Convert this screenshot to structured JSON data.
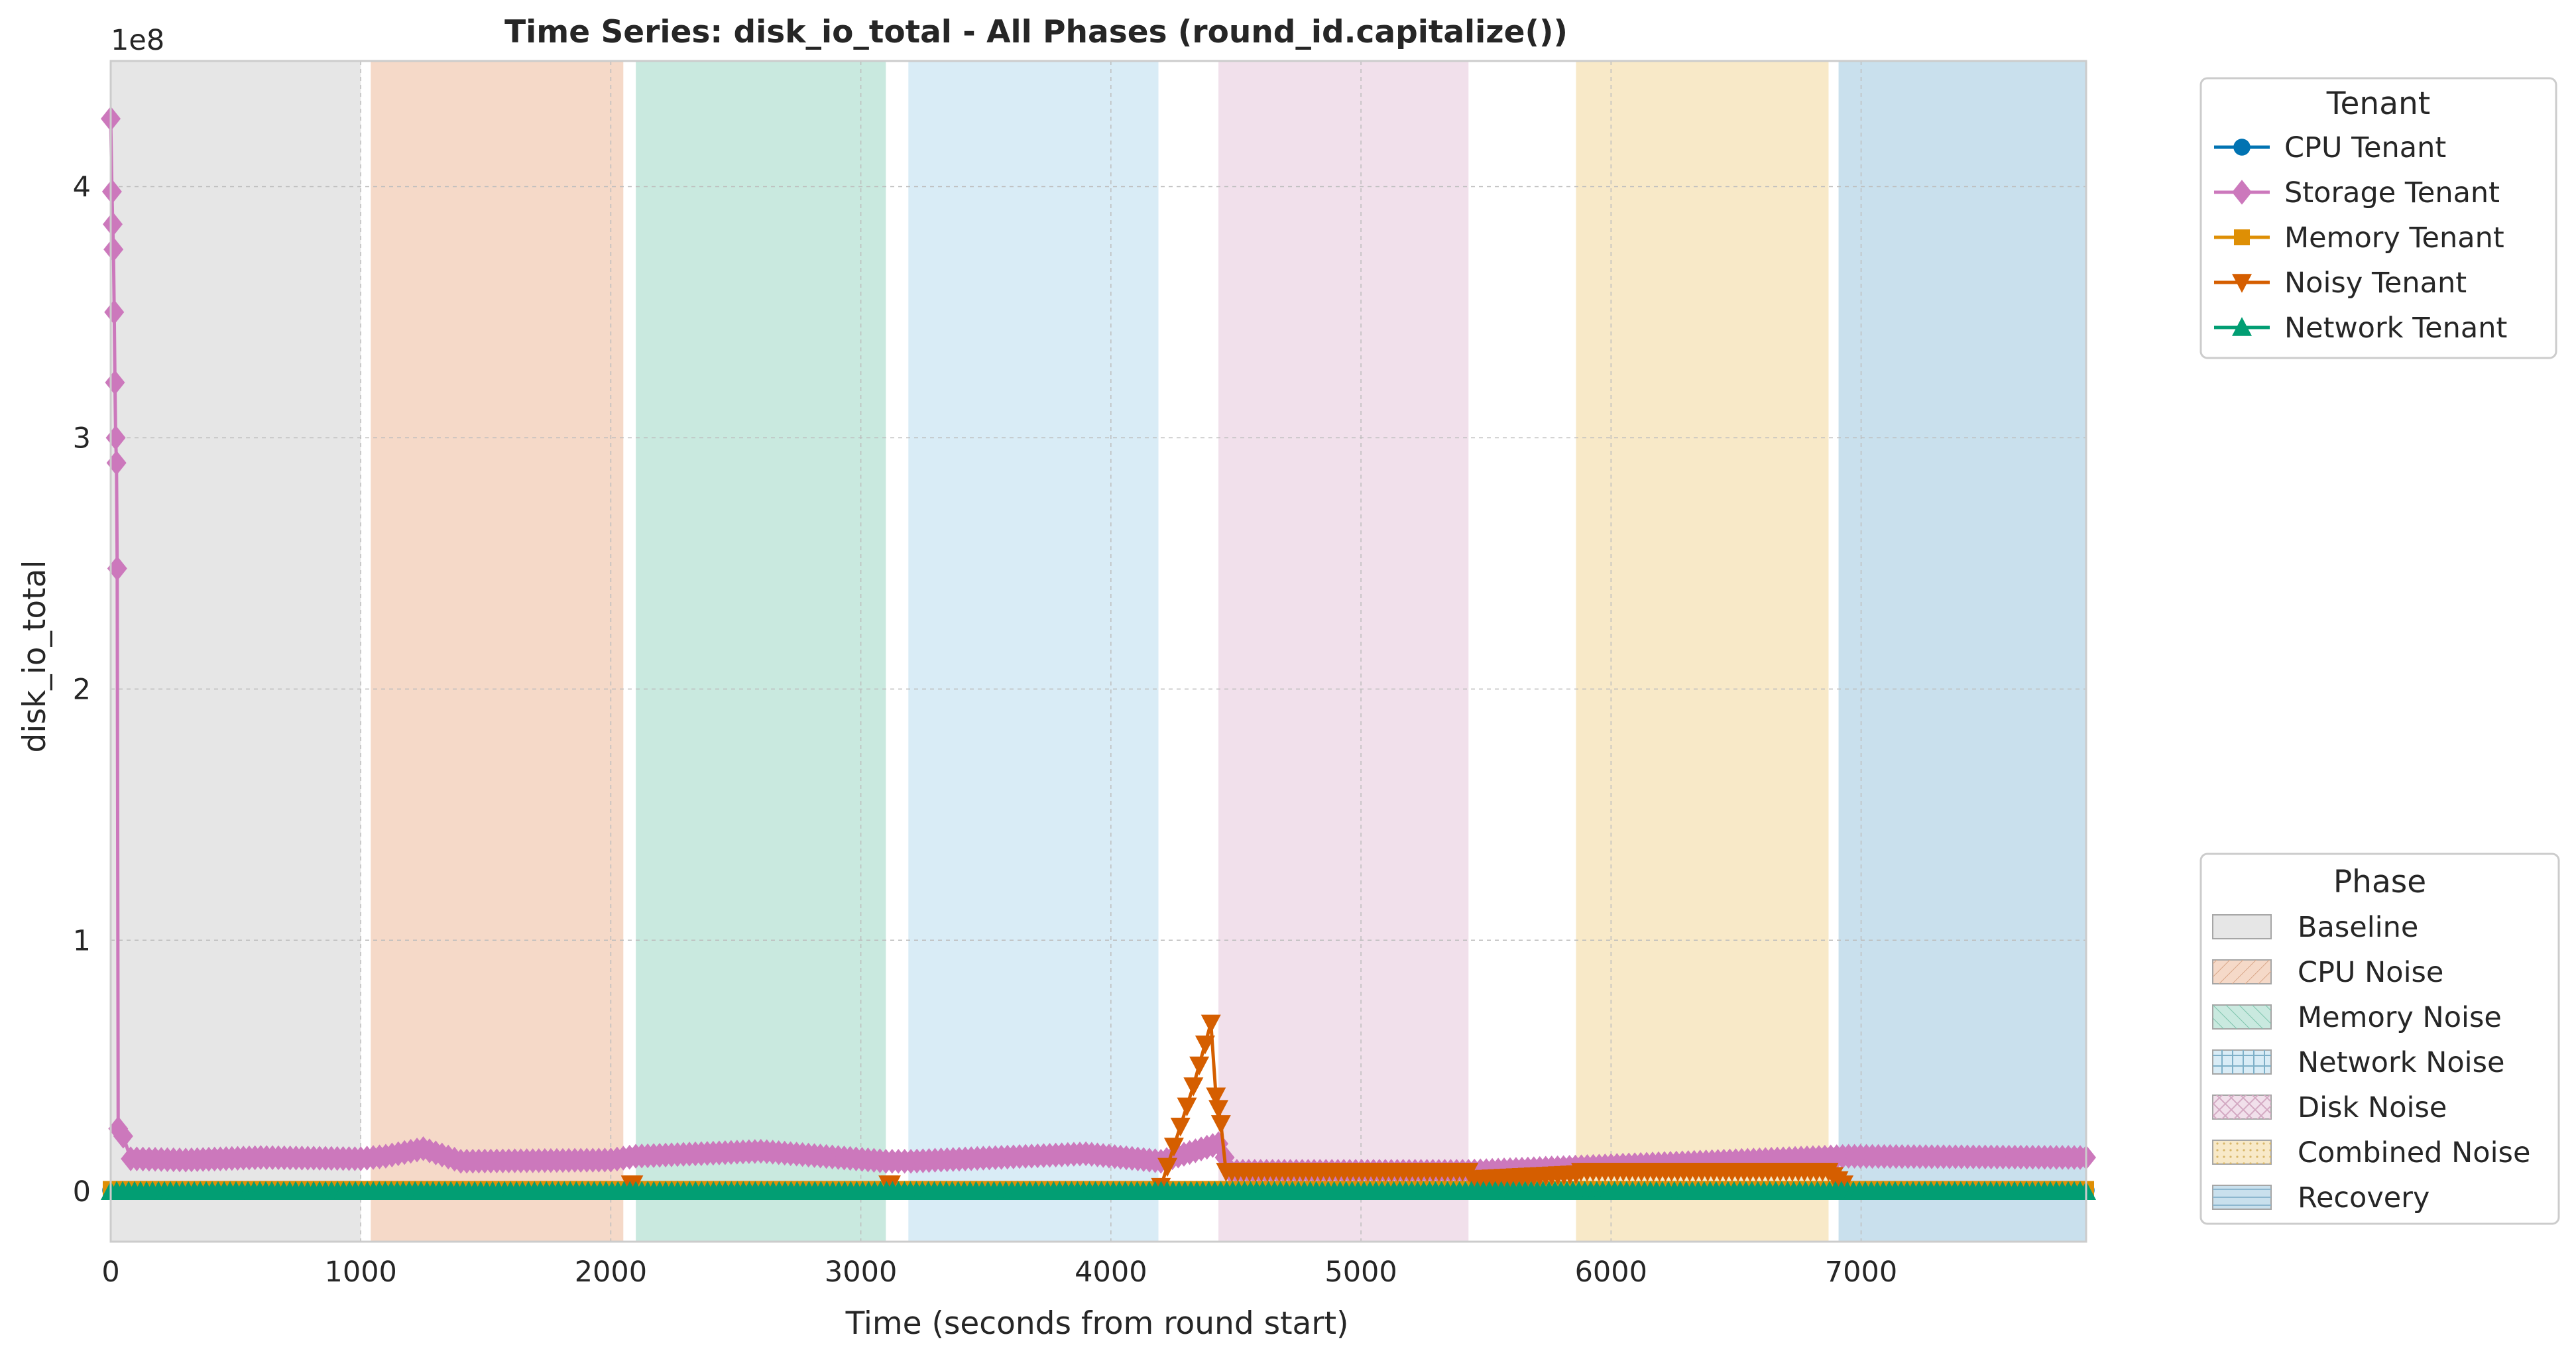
{
  "chart_data": {
    "type": "line",
    "title": "Time Series: disk_io_total - All Phases (round_id.capitalize())",
    "xlabel": "Time (seconds from round start)",
    "ylabel": "disk_io_total",
    "y_offset_text": "1e8",
    "xlim": [
      0,
      7900
    ],
    "ylim": [
      -0.2,
      4.5
    ],
    "y_unit_scale": 100000000,
    "x_ticks": [
      0,
      1000,
      2000,
      3000,
      4000,
      5000,
      6000,
      7000
    ],
    "x_tick_labels": [
      "0",
      "1000",
      "2000",
      "3000",
      "4000",
      "5000",
      "6000",
      "7000"
    ],
    "y_ticks": [
      0,
      1,
      2,
      3,
      4
    ],
    "y_tick_labels": [
      "0",
      "1",
      "2",
      "3",
      "4"
    ],
    "grid": true,
    "phases": [
      {
        "name": "Baseline",
        "start": 0,
        "end": 1000,
        "color": "#e6e6e6"
      },
      {
        "name": "CPU Noise",
        "start": 1040,
        "end": 2050,
        "color": "#f5d9c8"
      },
      {
        "name": "Memory Noise",
        "start": 2100,
        "end": 3100,
        "color": "#c9e9df"
      },
      {
        "name": "Network Noise",
        "start": 3190,
        "end": 4190,
        "color": "#d9ecf6"
      },
      {
        "name": "Disk Noise",
        "start": 4430,
        "end": 5430,
        "color": "#f1e0eb"
      },
      {
        "name": "Combined Noise",
        "start": 5860,
        "end": 6870,
        "color": "#f8e9c8"
      },
      {
        "name": "Recovery",
        "start": 6910,
        "end": 7900,
        "color": "#c9e0ed"
      }
    ],
    "series": [
      {
        "name": "CPU Tenant",
        "color": "#0173b2",
        "marker": "circle",
        "segments": [
          [
            [
              0,
              0.005
            ],
            [
              4200,
              0.005
            ]
          ],
          [
            [
              4430,
              0.005
            ],
            [
              7900,
              0.005
            ]
          ]
        ]
      },
      {
        "name": "Storage Tenant",
        "color": "#cc78bc",
        "marker": "diamond",
        "segments": [
          [
            [
              0,
              4.27
            ],
            [
              5,
              3.98
            ],
            [
              8,
              3.85
            ],
            [
              11,
              3.75
            ],
            [
              14,
              3.5
            ],
            [
              17,
              3.22
            ],
            [
              20,
              3.0
            ],
            [
              23,
              2.9
            ],
            [
              26,
              2.48
            ],
            [
              30,
              0.25
            ],
            [
              50,
              0.22
            ],
            [
              80,
              0.13
            ],
            [
              300,
              0.125
            ],
            [
              600,
              0.135
            ],
            [
              1000,
              0.13
            ],
            [
              1100,
              0.14
            ],
            [
              1250,
              0.17
            ],
            [
              1400,
              0.12
            ],
            [
              2000,
              0.125
            ],
            [
              2100,
              0.14
            ],
            [
              2600,
              0.16
            ],
            [
              3100,
              0.12
            ],
            [
              3200,
              0.12
            ],
            [
              3900,
              0.15
            ],
            [
              4200,
              0.12
            ],
            [
              4430,
              0.19
            ],
            [
              4480,
              0.08
            ],
            [
              5430,
              0.08
            ],
            [
              6950,
              0.14
            ],
            [
              7900,
              0.135
            ]
          ]
        ]
      },
      {
        "name": "Memory Tenant",
        "color": "#de8f05",
        "marker": "square",
        "segments": [
          [
            [
              0,
              0.01
            ],
            [
              7900,
              0.01
            ]
          ]
        ]
      },
      {
        "name": "Noisy Tenant",
        "color": "#d55e00",
        "marker": "triangle-down",
        "segments": [
          [
            [
              2080,
              0.03
            ],
            [
              2090,
              0.03
            ]
          ],
          [
            [
              3110,
              0.03
            ],
            [
              3120,
              0.03
            ]
          ],
          [
            [
              4200,
              0.02
            ],
            [
              4330,
              0.42
            ],
            [
              4400,
              0.67
            ],
            [
              4420,
              0.38
            ],
            [
              4430,
              0.33
            ],
            [
              4440,
              0.27
            ],
            [
              4460,
              0.08
            ],
            [
              5430,
              0.08
            ],
            [
              5450,
              0.05
            ],
            [
              5860,
              0.07
            ],
            [
              5880,
              0.08
            ],
            [
              6870,
              0.08
            ],
            [
              6930,
              0.03
            ]
          ]
        ]
      },
      {
        "name": "Network Tenant",
        "color": "#029e73",
        "marker": "triangle-up",
        "segments": [
          [
            [
              0,
              0.0
            ],
            [
              7900,
              0.0
            ]
          ]
        ]
      }
    ],
    "legends": {
      "tenant_title": "Tenant",
      "phase_title": "Phase"
    }
  }
}
